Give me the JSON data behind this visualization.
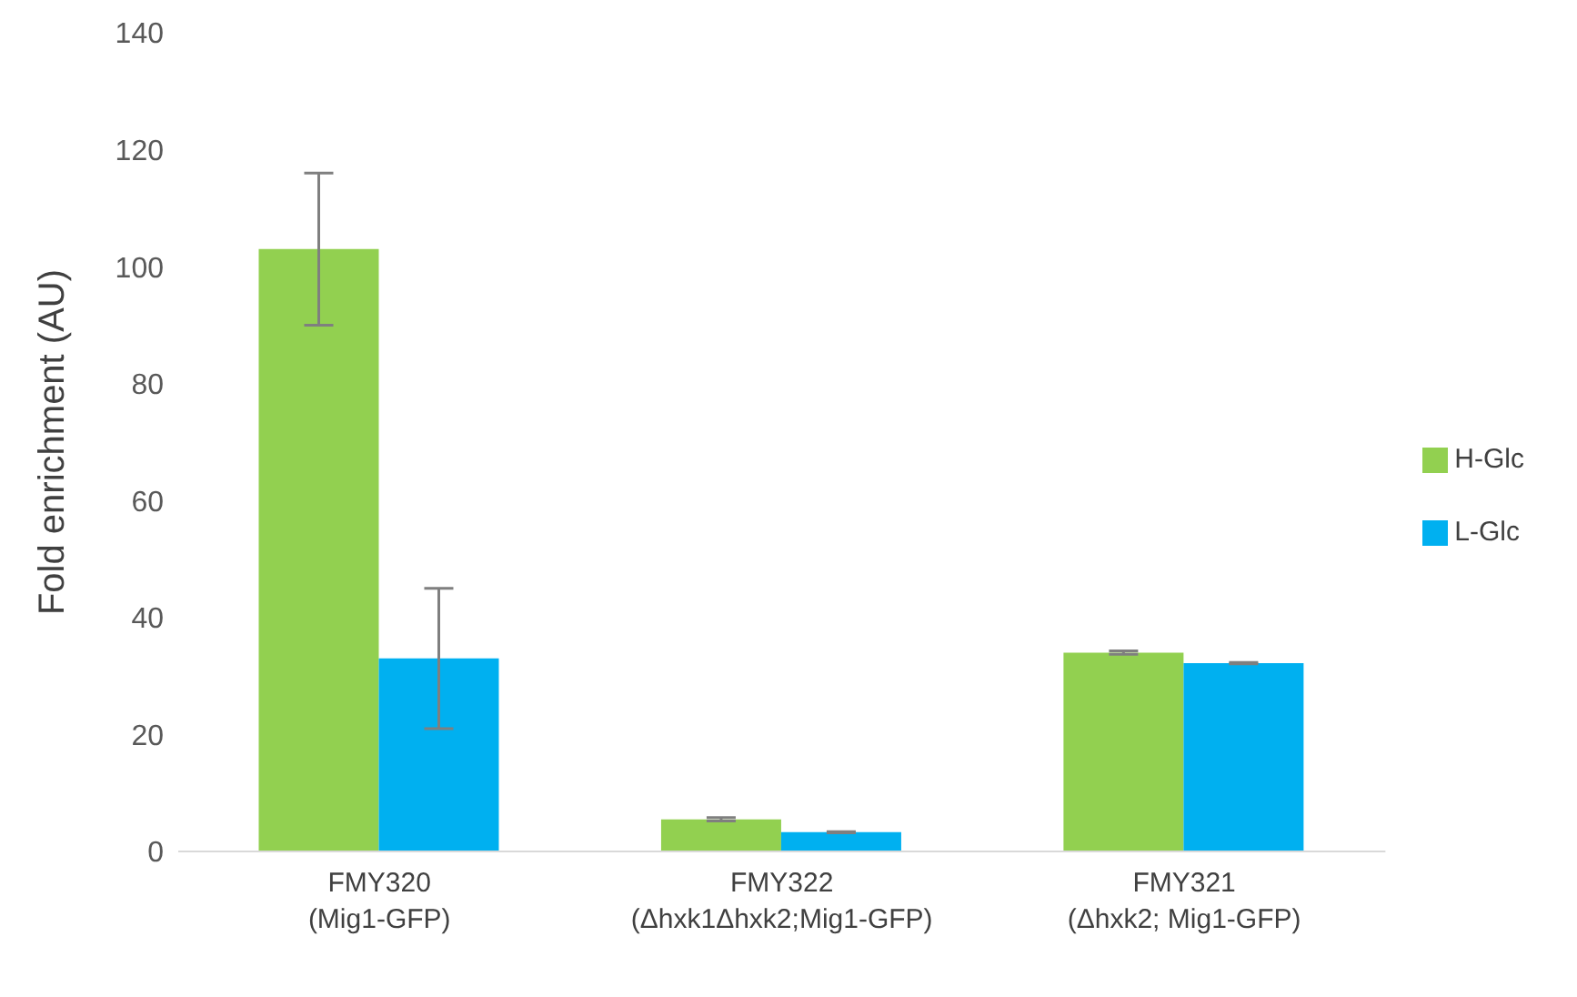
{
  "chart_data": {
    "type": "bar",
    "ylabel": "Fold enrichment (AU)",
    "categories": [
      "FMY320\n(Mig1-GFP)",
      "FMY322\n(Δhxk1Δhxk2;Mig1-GFP)",
      "FMY321\n(Δhxk2; Mig1-GFP)"
    ],
    "series": [
      {
        "name": "H-Glc",
        "color": "#92d050",
        "values": [
          103,
          5.5,
          34
        ],
        "errors": [
          13,
          0.3,
          0.3
        ]
      },
      {
        "name": "L-Glc",
        "color": "#00b0f0",
        "values": [
          33,
          3.3,
          32.2
        ],
        "errors": [
          12,
          0.1,
          0.1
        ]
      }
    ],
    "ylim": [
      0,
      140
    ],
    "yticks": [
      0,
      20,
      40,
      60,
      80,
      100,
      120,
      140
    ],
    "grid": false,
    "legend": "right"
  }
}
